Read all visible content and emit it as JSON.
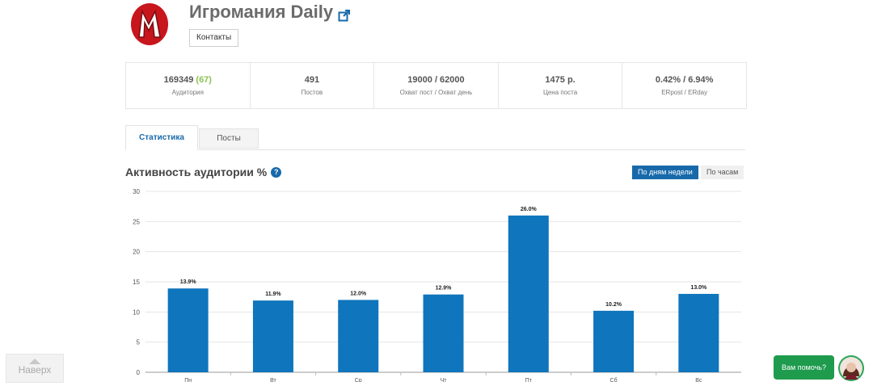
{
  "header": {
    "title": "Игромания Daily",
    "contacts_label": "Контакты",
    "logo_icon": "igromania-logo-icon",
    "external_icon": "external-link-icon"
  },
  "stats": [
    {
      "value": "169349",
      "extra": "(67)",
      "label": "Аудитория"
    },
    {
      "value": "491",
      "extra": "",
      "label": "Постов"
    },
    {
      "value": "19000 / 62000",
      "extra": "",
      "label": "Охват пост / Охват день"
    },
    {
      "value": "1475 р.",
      "extra": "",
      "label": "Цена поста"
    },
    {
      "value": "0.42% / 6.94%",
      "extra": "",
      "label": "ERpost / ERday"
    }
  ],
  "tabs": {
    "stats_label": "Статистика",
    "posts_label": "Посты"
  },
  "section": {
    "title": "Активность аудитории %",
    "help_symbol": "?",
    "toggle_days": "По дням недели",
    "toggle_hours": "По часам"
  },
  "chart_data": {
    "type": "bar",
    "categories": [
      "Пн",
      "Вт",
      "Ср",
      "Чт",
      "Пт",
      "Сб",
      "Вс"
    ],
    "values": [
      13.9,
      11.9,
      12.0,
      12.9,
      26.0,
      10.2,
      13.0
    ],
    "value_labels": [
      "13.9%",
      "11.9%",
      "12.0%",
      "12.9%",
      "26.0%",
      "10.2%",
      "13.0%"
    ],
    "yticks": [
      0,
      5,
      10,
      15,
      20,
      25,
      30
    ],
    "ylim": [
      0,
      30
    ],
    "grid": true,
    "bar_color": "#0f75bc"
  },
  "footer": {
    "back_to_top": "Наверх",
    "help_bubble": "Вам помочь?"
  },
  "colors": {
    "accent": "#1769aa",
    "green": "#8cc152",
    "chat_green": "#1f9b4e"
  }
}
